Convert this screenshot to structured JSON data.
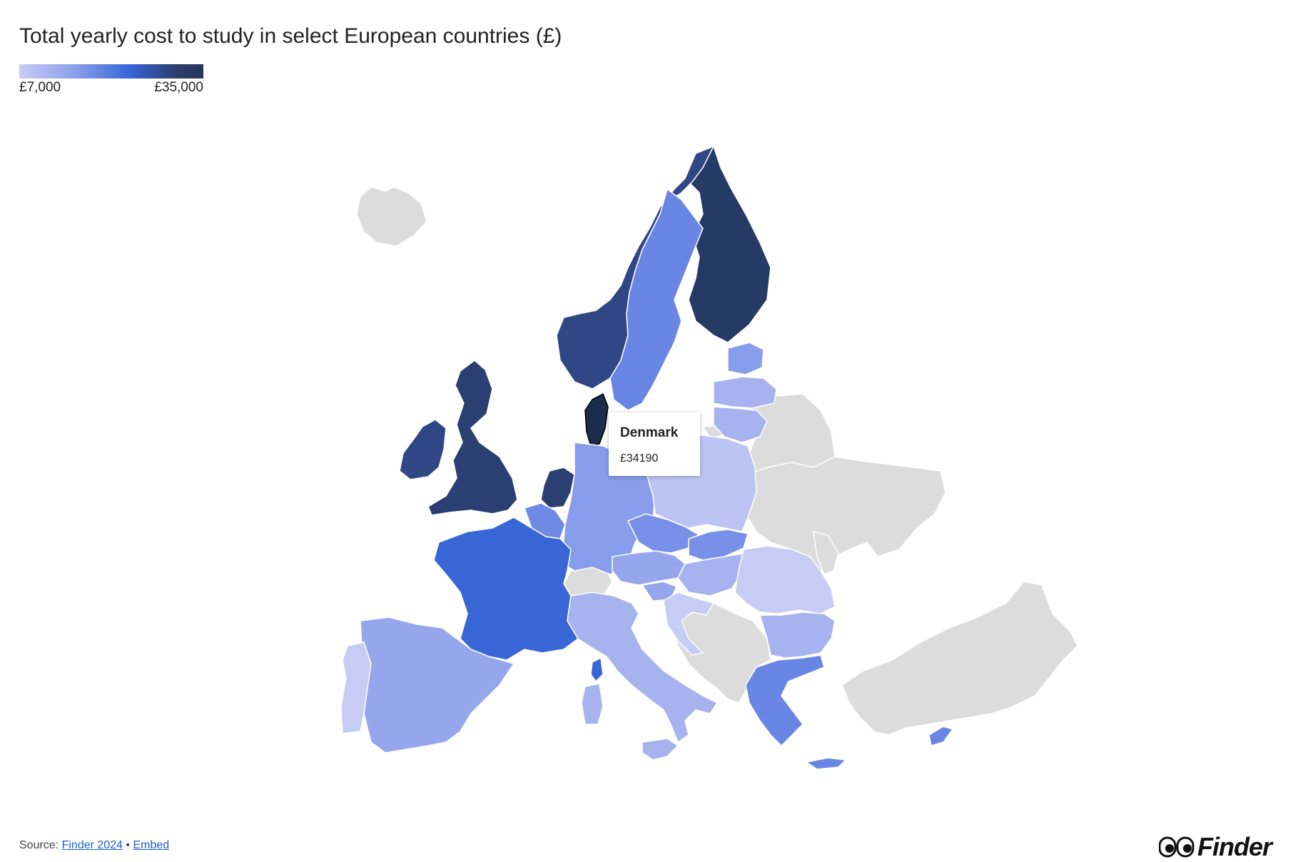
{
  "title": "Total yearly cost to study in select European countries (£)",
  "legend": {
    "min_label": "£7,000",
    "max_label": "£35,000",
    "min": 7000,
    "max": 35000,
    "colors": [
      "#c9cdf6",
      "#8aa0ea",
      "#3866d6",
      "#2b3f6e",
      "#243758"
    ]
  },
  "tooltip": {
    "country": "Denmark",
    "value": "£34190"
  },
  "no_data_color": "#dcdcdc",
  "countries": [
    {
      "name": "Finland",
      "color": "#263a66"
    },
    {
      "name": "Norway",
      "color": "#2f4785"
    },
    {
      "name": "Sweden",
      "color": "#6a86e4"
    },
    {
      "name": "Denmark",
      "color": "#1c2c4d"
    },
    {
      "name": "United Kingdom",
      "color": "#2b3f73"
    },
    {
      "name": "Ireland",
      "color": "#2f4785"
    },
    {
      "name": "Netherlands",
      "color": "#2b3f73"
    },
    {
      "name": "Belgium",
      "color": "#6f8ae4"
    },
    {
      "name": "France",
      "color": "#3866d6"
    },
    {
      "name": "Germany",
      "color": "#879cea"
    },
    {
      "name": "Spain",
      "color": "#95a6ec"
    },
    {
      "name": "Portugal",
      "color": "#c7ccf5"
    },
    {
      "name": "Italy",
      "color": "#a7b3ef"
    },
    {
      "name": "Poland",
      "color": "#bcc4f3"
    },
    {
      "name": "Czechia",
      "color": "#7890e7"
    },
    {
      "name": "Slovakia",
      "color": "#7890e7"
    },
    {
      "name": "Austria",
      "color": "#95a6ec"
    },
    {
      "name": "Hungary",
      "color": "#a7b3ef"
    },
    {
      "name": "Slovenia",
      "color": "#95a6ec"
    },
    {
      "name": "Croatia",
      "color": "#c7ccf5"
    },
    {
      "name": "Romania",
      "color": "#c7ccf5"
    },
    {
      "name": "Bulgaria",
      "color": "#a7b3ef"
    },
    {
      "name": "Greece",
      "color": "#6a86e4"
    },
    {
      "name": "Estonia",
      "color": "#879cea"
    },
    {
      "name": "Latvia",
      "color": "#a7b3ef"
    },
    {
      "name": "Lithuania",
      "color": "#a7b3ef"
    },
    {
      "name": "Cyprus",
      "color": "#6a86e4"
    },
    {
      "name": "Corsica",
      "color": "#3866d6"
    },
    {
      "name": "Sardinia",
      "color": "#a7b3ef"
    },
    {
      "name": "Sicily",
      "color": "#a7b3ef"
    }
  ],
  "source": {
    "prefix": "Source: ",
    "link1": "Finder 2024",
    "separator": " • ",
    "link2": "Embed"
  },
  "logo": {
    "text": "Finder"
  }
}
